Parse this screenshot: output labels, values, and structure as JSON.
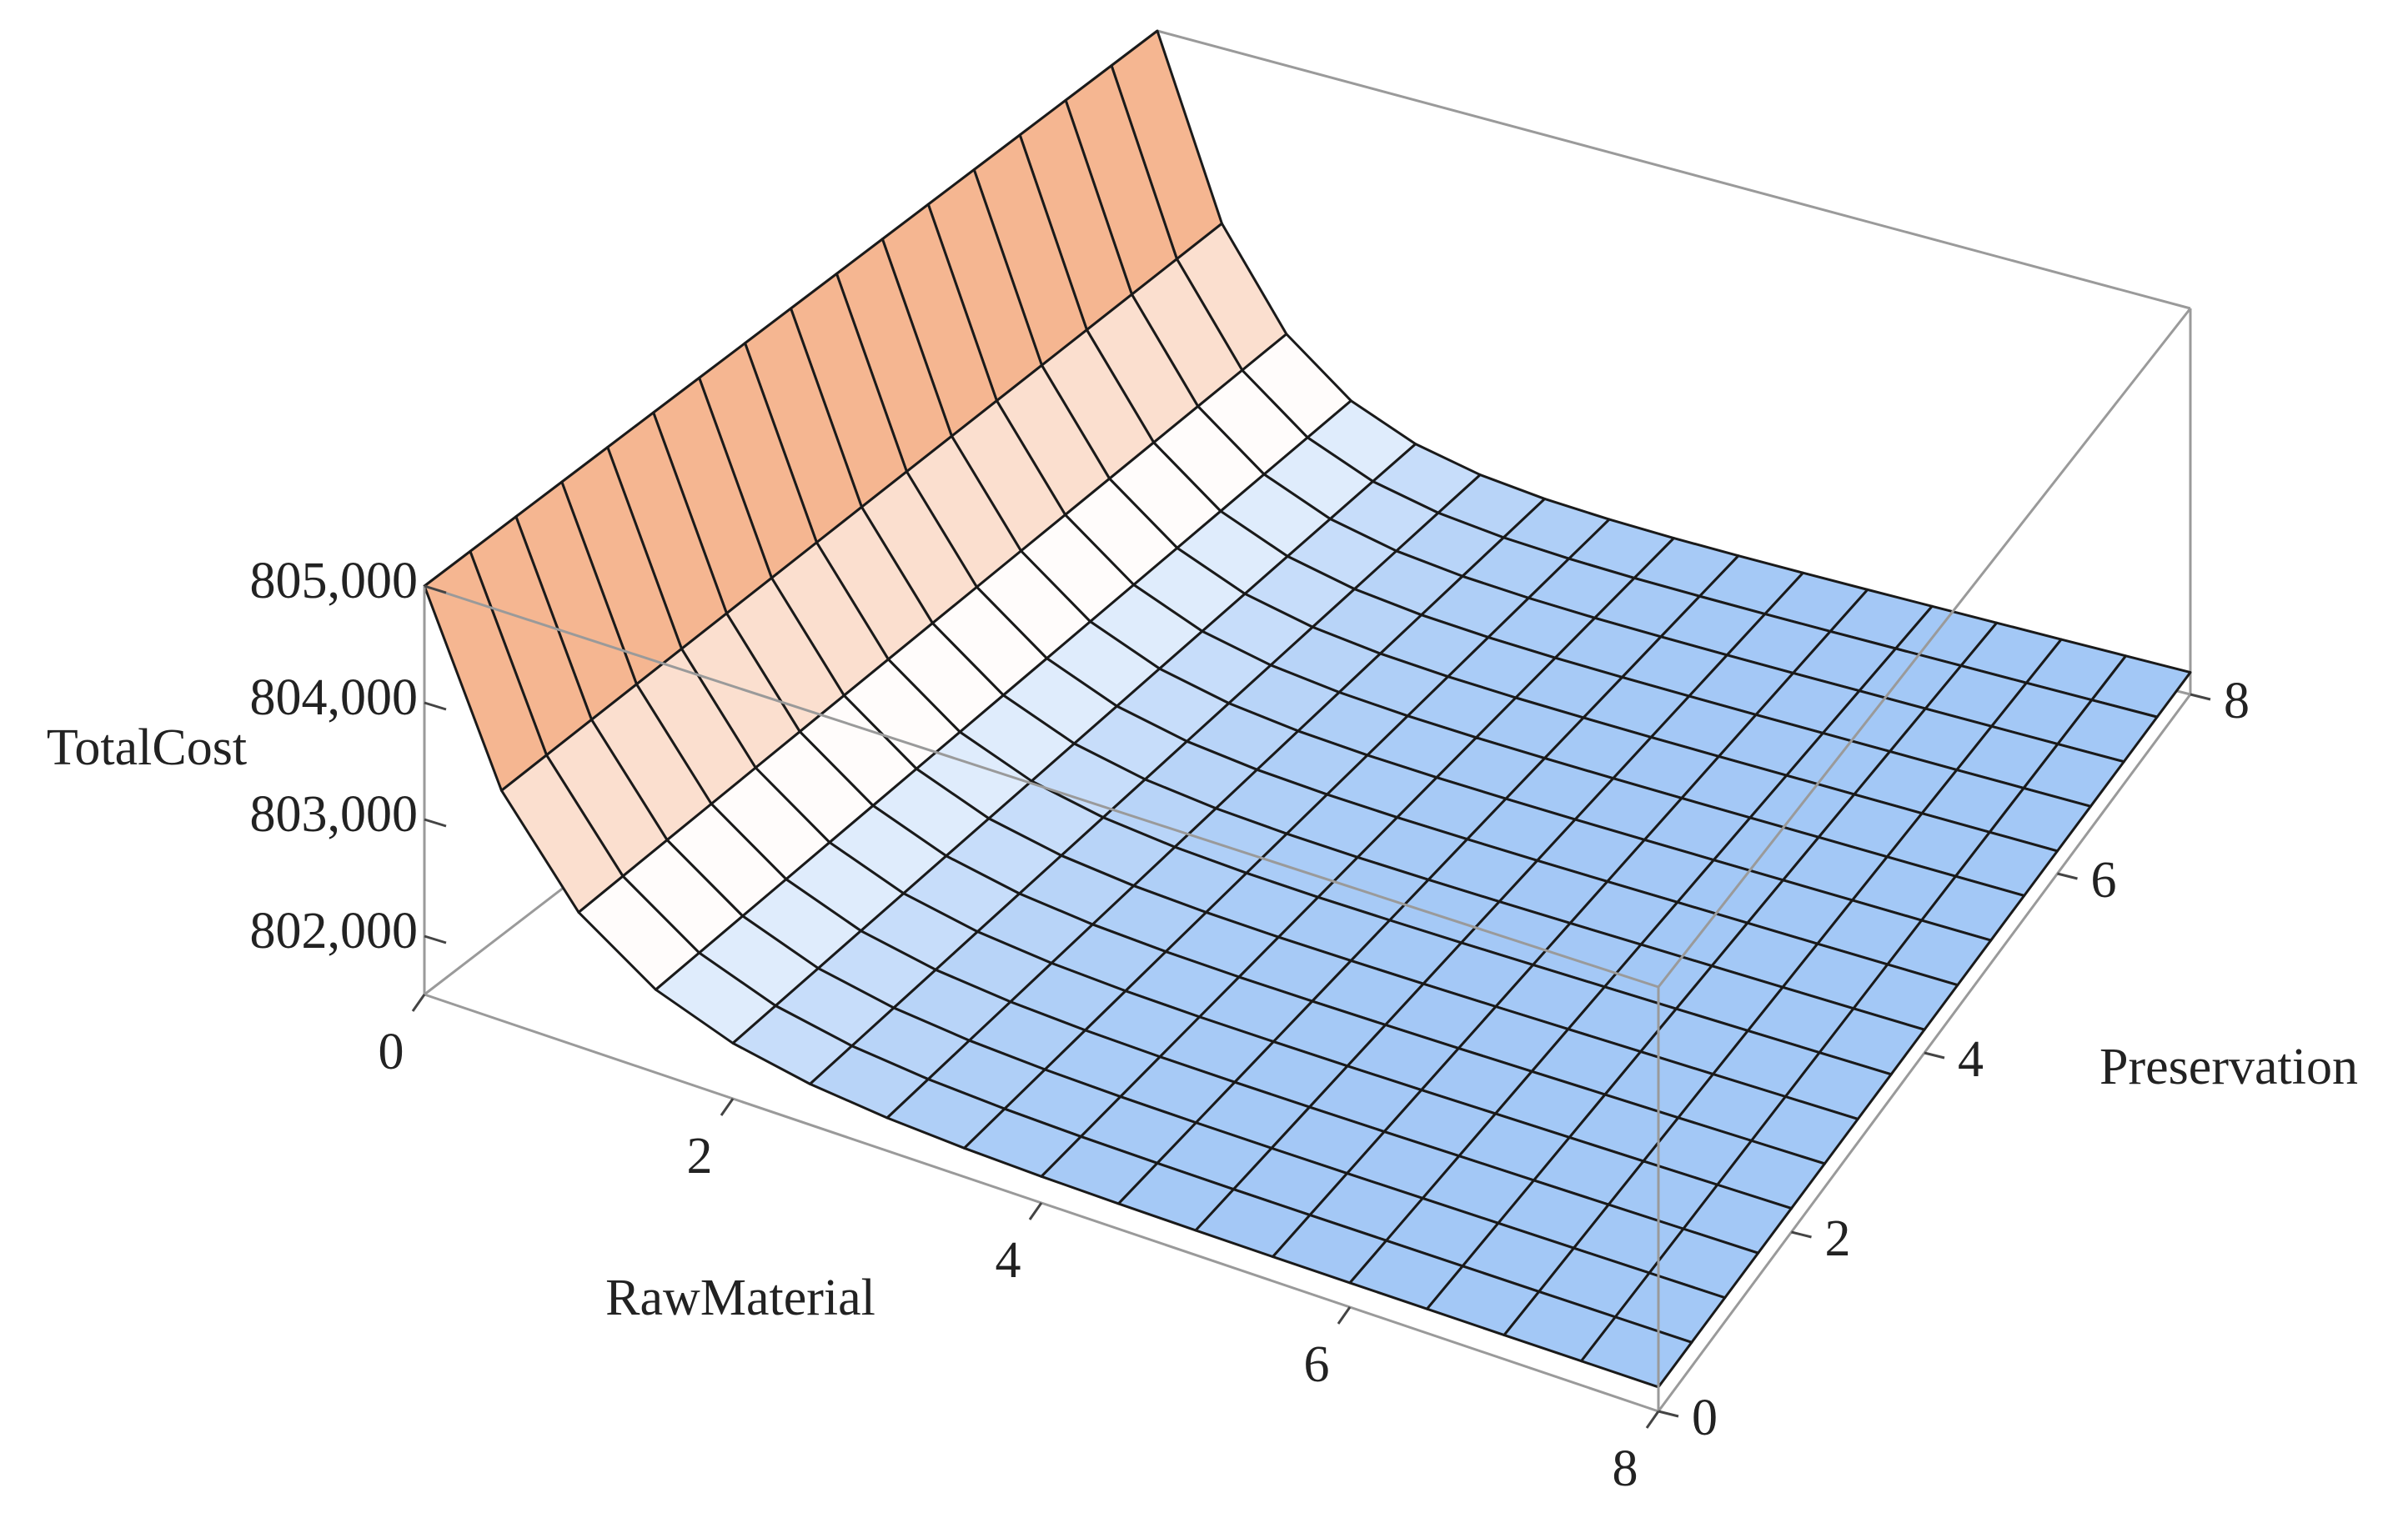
{
  "chart_data": {
    "type": "surface",
    "xlabel": "RawMaterial",
    "ylabel": "Preservation",
    "zlabel": "TotalCost",
    "x": [
      0,
      0.5,
      1,
      1.5,
      2,
      2.5,
      3,
      3.5,
      4,
      4.5,
      5,
      5.5,
      6,
      6.5,
      7,
      7.5,
      8
    ],
    "y": [
      0,
      0.5,
      1,
      1.5,
      2,
      2.5,
      3,
      3.5,
      4,
      4.5,
      5,
      5.5,
      6,
      6.5,
      7,
      7.5,
      8
    ],
    "z": [
      [
        805000,
        805000,
        805000,
        805000,
        805000,
        805000,
        805000,
        805000,
        805000,
        805000,
        805000,
        805000,
        805000,
        805000,
        805000,
        805000,
        805000
      ],
      [
        803466,
        803466,
        803466,
        803466,
        803466,
        803466,
        803466,
        803466,
        803466,
        803466,
        803466,
        803466,
        803466,
        803466,
        803466,
        803466,
        803466
      ],
      [
        802645,
        802645,
        802645,
        802645,
        802645,
        802645,
        802645,
        802645,
        802645,
        802645,
        802645,
        802645,
        802645,
        802645,
        802645,
        802645,
        802645
      ],
      [
        802206,
        802206,
        802206,
        802206,
        802206,
        802206,
        802206,
        802206,
        802206,
        802206,
        802206,
        802206,
        802206,
        802206,
        802206,
        802206,
        802206
      ],
      [
        801971,
        801971,
        801971,
        801971,
        801971,
        801971,
        801971,
        801971,
        801971,
        801971,
        801971,
        801971,
        801971,
        801971,
        801971,
        801971,
        801971
      ],
      [
        801845,
        801845,
        801845,
        801845,
        801845,
        801845,
        801845,
        801845,
        801845,
        801845,
        801845,
        801845,
        801845,
        801845,
        801845,
        801845,
        801845
      ],
      [
        801778,
        801778,
        801778,
        801778,
        801778,
        801778,
        801778,
        801778,
        801778,
        801778,
        801778,
        801778,
        801778,
        801778,
        801778,
        801778,
        801778
      ],
      [
        801742,
        801742,
        801742,
        801742,
        801742,
        801742,
        801742,
        801742,
        801742,
        801742,
        801742,
        801742,
        801742,
        801742,
        801742,
        801742,
        801742
      ],
      [
        801722,
        801722,
        801722,
        801722,
        801722,
        801722,
        801722,
        801722,
        801722,
        801722,
        801722,
        801722,
        801722,
        801722,
        801722,
        801722,
        801722
      ],
      [
        801712,
        801712,
        801712,
        801712,
        801712,
        801712,
        801712,
        801712,
        801712,
        801712,
        801712,
        801712,
        801712,
        801712,
        801712,
        801712,
        801712
      ],
      [
        801706,
        801706,
        801706,
        801706,
        801706,
        801706,
        801706,
        801706,
        801706,
        801706,
        801706,
        801706,
        801706,
        801706,
        801706,
        801706,
        801706
      ],
      [
        801703,
        801703,
        801703,
        801703,
        801703,
        801703,
        801703,
        801703,
        801703,
        801703,
        801703,
        801703,
        801703,
        801703,
        801703,
        801703,
        801703
      ],
      [
        801702,
        801702,
        801702,
        801702,
        801702,
        801702,
        801702,
        801702,
        801702,
        801702,
        801702,
        801702,
        801702,
        801702,
        801702,
        801702,
        801702
      ],
      [
        801701,
        801701,
        801701,
        801701,
        801701,
        801701,
        801701,
        801701,
        801701,
        801701,
        801701,
        801701,
        801701,
        801701,
        801701,
        801701,
        801701
      ],
      [
        801700,
        801700,
        801700,
        801700,
        801700,
        801700,
        801700,
        801700,
        801700,
        801700,
        801700,
        801700,
        801700,
        801700,
        801700,
        801700,
        801700
      ],
      [
        801700,
        801700,
        801700,
        801700,
        801700,
        801700,
        801700,
        801700,
        801700,
        801700,
        801700,
        801700,
        801700,
        801700,
        801700,
        801700,
        801700
      ],
      [
        801700,
        801700,
        801700,
        801700,
        801700,
        801700,
        801700,
        801700,
        801700,
        801700,
        801700,
        801700,
        801700,
        801700,
        801700,
        801700,
        801700
      ]
    ],
    "xlim": [
      0,
      8
    ],
    "ylim": [
      0,
      8
    ],
    "zlim": [
      801500,
      805000
    ],
    "xticks": [
      0,
      2,
      4,
      6,
      8
    ],
    "yticks": [
      0,
      2,
      4,
      6,
      8
    ],
    "zticks": [
      {
        "value": 802000,
        "label": "802,000"
      },
      {
        "value": 803000,
        "label": "803,000"
      },
      {
        "value": 804000,
        "label": "804,000"
      },
      {
        "value": 805000,
        "label": "805,000"
      }
    ],
    "colors": [
      "#4f95ee",
      "#ffffff",
      "#f2a070"
    ]
  }
}
